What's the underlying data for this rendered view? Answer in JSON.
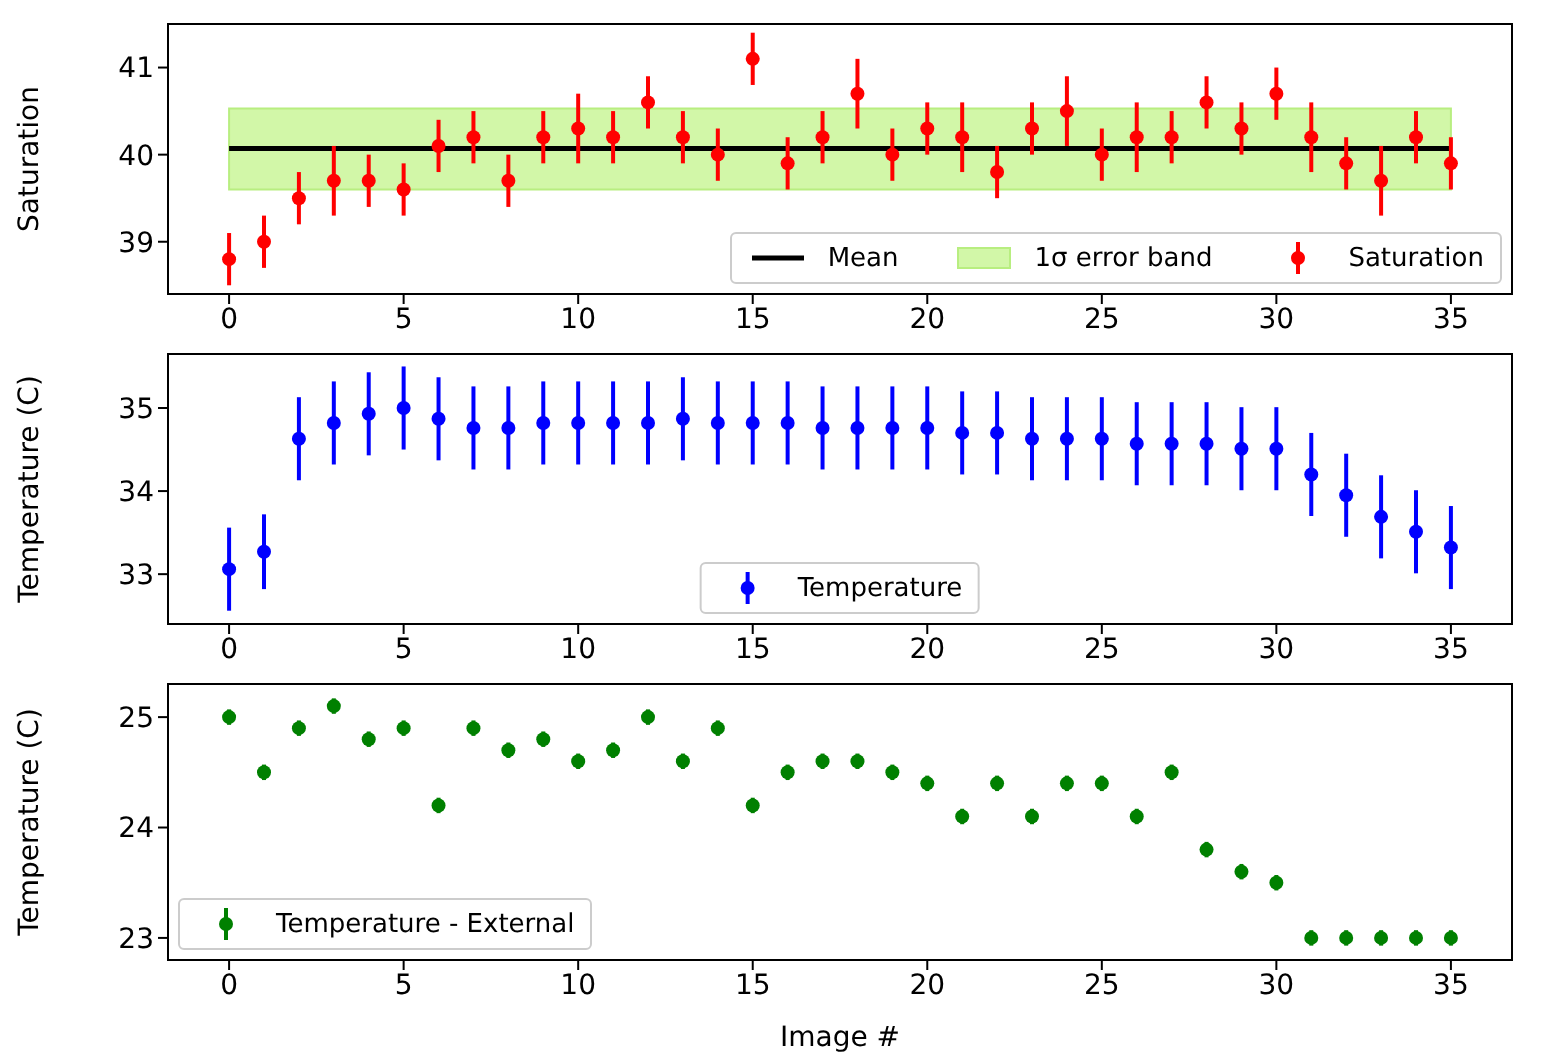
{
  "chart_data": [
    {
      "type": "scatter",
      "x": [
        0,
        1,
        2,
        3,
        4,
        5,
        6,
        7,
        8,
        9,
        10,
        11,
        12,
        13,
        14,
        15,
        16,
        17,
        18,
        19,
        20,
        21,
        22,
        23,
        24,
        25,
        26,
        27,
        28,
        29,
        30,
        31,
        32,
        33,
        34,
        35
      ],
      "xlim": [
        -1.75,
        36.75
      ],
      "xticks": [
        0,
        5,
        10,
        15,
        20,
        25,
        30,
        35
      ],
      "ylabel": "Saturation",
      "ylim": [
        38.4,
        41.5
      ],
      "yticks": [
        39,
        40,
        41
      ],
      "legend": "bottom right",
      "marker": "circle",
      "bands": [
        {
          "axis": "y",
          "from": 39.6,
          "to": 40.53,
          "label": "1σ error band",
          "color": "#d2f7a8"
        }
      ],
      "series": [
        {
          "name": "Mean",
          "type": "line",
          "marker": "none",
          "color": "#000000",
          "x": [
            0,
            35
          ],
          "values": [
            40.07,
            40.07
          ]
        },
        {
          "name": "Saturation",
          "color": "#ff0000",
          "values": [
            38.8,
            39.0,
            39.5,
            39.7,
            39.7,
            39.6,
            40.1,
            40.2,
            39.7,
            40.2,
            40.3,
            40.2,
            40.6,
            40.2,
            40.0,
            41.1,
            39.9,
            40.2,
            40.7,
            40.0,
            40.3,
            40.2,
            39.8,
            40.3,
            40.5,
            40.0,
            40.2,
            40.2,
            40.6,
            40.3,
            40.7,
            40.2,
            39.9,
            39.7,
            40.2,
            39.9
          ],
          "errors": [
            0.3,
            0.3,
            0.3,
            0.4,
            0.3,
            0.3,
            0.3,
            0.3,
            0.3,
            0.3,
            0.4,
            0.3,
            0.3,
            0.3,
            0.3,
            0.3,
            0.3,
            0.3,
            0.4,
            0.3,
            0.3,
            0.4,
            0.3,
            0.3,
            0.4,
            0.3,
            0.4,
            0.3,
            0.3,
            0.3,
            0.3,
            0.4,
            0.3,
            0.4,
            0.3,
            0.3
          ]
        }
      ]
    },
    {
      "type": "scatter",
      "x": [
        0,
        1,
        2,
        3,
        4,
        5,
        6,
        7,
        8,
        9,
        10,
        11,
        12,
        13,
        14,
        15,
        16,
        17,
        18,
        19,
        20,
        21,
        22,
        23,
        24,
        25,
        26,
        27,
        28,
        29,
        30,
        31,
        32,
        33,
        34,
        35
      ],
      "xlim": [
        -1.75,
        36.75
      ],
      "xticks": [
        0,
        5,
        10,
        15,
        20,
        25,
        30,
        35
      ],
      "ylabel": "Temperature (C)",
      "ylim": [
        32.4,
        35.65
      ],
      "yticks": [
        33,
        34,
        35
      ],
      "legend": "bottom",
      "marker": "circle",
      "series": [
        {
          "name": "Temperature",
          "color": "#0000ff",
          "values": [
            33.06,
            33.27,
            34.63,
            34.82,
            34.93,
            35.0,
            34.87,
            34.76,
            34.76,
            34.82,
            34.82,
            34.82,
            34.82,
            34.87,
            34.82,
            34.82,
            34.82,
            34.76,
            34.76,
            34.76,
            34.76,
            34.7,
            34.7,
            34.63,
            34.63,
            34.63,
            34.57,
            34.57,
            34.57,
            34.51,
            34.51,
            34.2,
            33.95,
            33.69,
            33.51,
            33.32
          ],
          "errors": [
            0.5,
            0.45,
            0.5,
            0.5,
            0.5,
            0.5,
            0.5,
            0.5,
            0.5,
            0.5,
            0.5,
            0.5,
            0.5,
            0.5,
            0.5,
            0.5,
            0.5,
            0.5,
            0.5,
            0.5,
            0.5,
            0.5,
            0.5,
            0.5,
            0.5,
            0.5,
            0.5,
            0.5,
            0.5,
            0.5,
            0.5,
            0.5,
            0.5,
            0.5,
            0.5,
            0.5
          ]
        }
      ]
    },
    {
      "type": "scatter",
      "x": [
        0,
        1,
        2,
        3,
        4,
        5,
        6,
        7,
        8,
        9,
        10,
        11,
        12,
        13,
        14,
        15,
        16,
        17,
        18,
        19,
        20,
        21,
        22,
        23,
        24,
        25,
        26,
        27,
        28,
        29,
        30,
        31,
        32,
        33,
        34,
        35
      ],
      "xlim": [
        -1.75,
        36.75
      ],
      "xticks": [
        0,
        5,
        10,
        15,
        20,
        25,
        30,
        35
      ],
      "xlabel": "Image #",
      "ylabel": "Temperature (C)",
      "ylim": [
        22.8,
        25.3
      ],
      "yticks": [
        23,
        24,
        25
      ],
      "legend": "bottom left",
      "marker": "circle",
      "series": [
        {
          "name": "Temperature - External",
          "color": "#008000",
          "values": [
            25.0,
            24.5,
            24.9,
            25.1,
            24.8,
            24.9,
            24.2,
            24.9,
            24.7,
            24.8,
            24.6,
            24.7,
            25.0,
            24.6,
            24.9,
            24.2,
            24.5,
            24.6,
            24.6,
            24.5,
            24.4,
            24.1,
            24.4,
            24.1,
            24.4,
            24.4,
            24.1,
            24.5,
            23.8,
            23.6,
            23.5,
            23.0,
            23.0,
            23.0,
            23.0,
            23.0
          ],
          "errors": [
            0.07,
            0.07,
            0.07,
            0.07,
            0.07,
            0.07,
            0.07,
            0.07,
            0.07,
            0.07,
            0.07,
            0.07,
            0.07,
            0.07,
            0.07,
            0.07,
            0.07,
            0.07,
            0.07,
            0.07,
            0.07,
            0.07,
            0.07,
            0.07,
            0.07,
            0.07,
            0.07,
            0.07,
            0.07,
            0.07,
            0.07,
            0.07,
            0.07,
            0.07,
            0.07,
            0.07
          ]
        }
      ]
    }
  ]
}
